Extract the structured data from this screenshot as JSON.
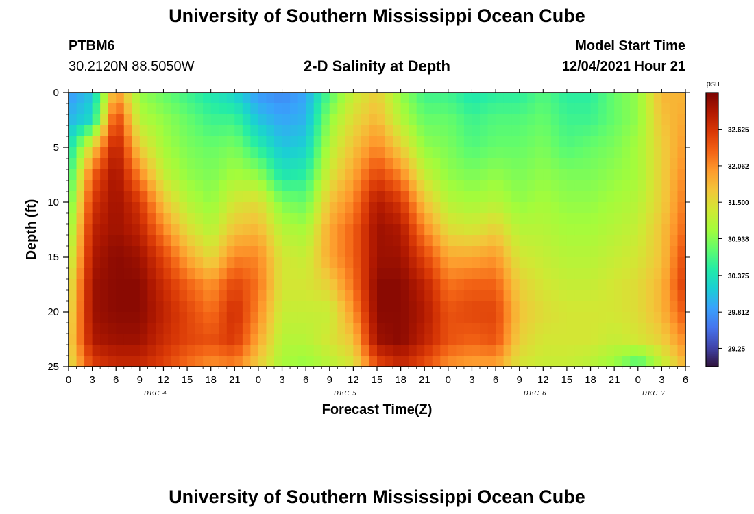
{
  "header": {
    "title": "University of Southern Mississippi Ocean Cube",
    "station_id": "PTBM6",
    "station_coords": "30.2120N  88.5050W",
    "chart_subtitle": "2-D Salinity at Depth",
    "model_start_label": "Model Start Time",
    "model_start_value": "12/04/2021 Hour 21"
  },
  "footer": {
    "title": "University of Southern Mississippi Ocean Cube"
  },
  "chart_data": {
    "type": "heatmap",
    "title": "2-D Salinity at Depth",
    "xlabel": "Forecast Time(Z)",
    "ylabel": "Depth (ft)",
    "x_hours_range": [
      0,
      78
    ],
    "ylim": [
      0,
      25
    ],
    "x_tick_labels": [
      "0",
      "3",
      "6",
      "9",
      "12",
      "15",
      "18",
      "21",
      "0",
      "3",
      "6",
      "9",
      "12",
      "15",
      "18",
      "21",
      "0",
      "3",
      "6",
      "9",
      "12",
      "15",
      "18",
      "21",
      "0",
      "3",
      "6"
    ],
    "y_tick_labels": [
      "0",
      "5",
      "10",
      "15",
      "20",
      "25"
    ],
    "day_labels": [
      {
        "label": "DEC 4",
        "hour": 11
      },
      {
        "label": "DEC 5",
        "hour": 35
      },
      {
        "label": "DEC 6",
        "hour": 59
      },
      {
        "label": "DEC 7",
        "hour": 74
      }
    ],
    "colorbar": {
      "unit": "psu",
      "vmin": 28.97,
      "vmax": 33.19,
      "tick_values": [
        32.625,
        32.062,
        31.5,
        30.938,
        30.375,
        29.812,
        29.25
      ],
      "tick_labels": [
        "32.625",
        "32.062",
        "31.500",
        "30.938",
        "30.375",
        "29.812",
        "29.25"
      ],
      "colormap": [
        "#30123b",
        "#4145ab",
        "#4675ed",
        "#39a2fc",
        "#1bcfd4",
        "#24eca6",
        "#61fc6c",
        "#a4fc3b",
        "#d1e834",
        "#f3c63a",
        "#fe9b2d",
        "#f36315",
        "#d93806",
        "#b11901",
        "#7a0402"
      ]
    },
    "approx_grid": {
      "x_hours": [
        0,
        3,
        6,
        9,
        12,
        15,
        18,
        21,
        24,
        27,
        30,
        33,
        36,
        39,
        42,
        45,
        48,
        51,
        54,
        57,
        60,
        63,
        66,
        69,
        72,
        75,
        78
      ],
      "depths_ft": [
        0,
        2.5,
        5,
        7.5,
        10,
        12.5,
        15,
        17.5,
        20,
        22.5,
        25
      ],
      "values_psu": [
        [
          29.8,
          30.0,
          30.3,
          30.5,
          30.7,
          30.9,
          31.1,
          31.3,
          31.4,
          31.5,
          31.4
        ],
        [
          30.1,
          30.3,
          31.6,
          32.3,
          32.6,
          32.8,
          32.9,
          33.0,
          33.0,
          32.9,
          32.5
        ],
        [
          32.0,
          32.6,
          32.9,
          33.0,
          33.0,
          33.0,
          33.1,
          33.1,
          33.1,
          33.0,
          32.7
        ],
        [
          31.0,
          31.2,
          31.6,
          32.1,
          32.6,
          32.8,
          33.0,
          33.1,
          33.1,
          33.0,
          32.7
        ],
        [
          30.8,
          31.0,
          31.1,
          31.3,
          31.7,
          32.1,
          32.5,
          32.7,
          32.8,
          32.7,
          32.5
        ],
        [
          30.6,
          30.8,
          30.9,
          31.0,
          31.2,
          31.5,
          31.9,
          32.3,
          32.5,
          32.5,
          32.2
        ],
        [
          30.4,
          30.6,
          30.8,
          30.9,
          31.0,
          31.2,
          31.5,
          32.0,
          32.2,
          32.4,
          32.0
        ],
        [
          30.2,
          30.6,
          30.9,
          31.1,
          31.4,
          31.7,
          32.1,
          32.5,
          32.7,
          32.6,
          32.1
        ],
        [
          29.8,
          30.1,
          30.5,
          31.0,
          31.5,
          31.8,
          32.1,
          32.2,
          32.1,
          31.9,
          31.6
        ],
        [
          29.7,
          29.9,
          30.1,
          30.4,
          30.9,
          31.2,
          31.4,
          31.4,
          31.3,
          31.2,
          31.1
        ],
        [
          29.9,
          30.0,
          30.2,
          30.5,
          30.8,
          31.1,
          31.3,
          31.4,
          31.3,
          31.2,
          31.0
        ],
        [
          30.7,
          31.0,
          31.2,
          31.4,
          31.7,
          31.9,
          31.9,
          31.6,
          31.3,
          31.4,
          31.2
        ],
        [
          31.3,
          31.5,
          31.7,
          31.9,
          32.1,
          32.3,
          32.3,
          32.2,
          32.0,
          31.7,
          31.4
        ],
        [
          31.6,
          31.8,
          32.1,
          32.5,
          32.9,
          33.0,
          33.0,
          33.1,
          33.1,
          33.0,
          32.4
        ],
        [
          31.0,
          31.2,
          31.6,
          32.1,
          32.6,
          32.9,
          33.0,
          33.1,
          33.1,
          33.1,
          32.7
        ],
        [
          30.6,
          30.8,
          31.0,
          31.3,
          31.7,
          32.1,
          32.5,
          32.8,
          32.9,
          32.8,
          32.4
        ],
        [
          30.6,
          30.8,
          30.9,
          31.0,
          31.2,
          31.5,
          31.9,
          32.2,
          32.4,
          32.4,
          32.0
        ],
        [
          30.4,
          30.6,
          30.7,
          30.9,
          31.1,
          31.4,
          31.9,
          32.3,
          32.5,
          32.3,
          31.9
        ],
        [
          30.5,
          30.7,
          30.8,
          31.0,
          31.2,
          31.6,
          32.0,
          32.3,
          32.5,
          32.4,
          31.9
        ],
        [
          30.5,
          30.7,
          30.8,
          30.9,
          31.0,
          31.2,
          31.4,
          31.6,
          31.7,
          31.6,
          31.4
        ],
        [
          30.7,
          30.8,
          30.9,
          31.0,
          31.1,
          31.2,
          31.3,
          31.4,
          31.5,
          31.4,
          31.3
        ],
        [
          30.5,
          30.6,
          30.7,
          30.9,
          31.0,
          31.1,
          31.2,
          31.3,
          31.4,
          31.4,
          31.3
        ],
        [
          30.5,
          30.6,
          30.8,
          30.9,
          31.0,
          31.1,
          31.2,
          31.3,
          31.4,
          31.4,
          31.2
        ],
        [
          30.8,
          30.8,
          30.9,
          31.0,
          31.1,
          31.2,
          31.3,
          31.4,
          31.4,
          31.3,
          31.0
        ],
        [
          31.0,
          31.0,
          31.1,
          31.1,
          31.2,
          31.3,
          31.4,
          31.5,
          31.5,
          31.4,
          30.6
        ],
        [
          31.8,
          31.7,
          31.6,
          31.6,
          31.6,
          31.7,
          31.7,
          31.8,
          31.8,
          31.6,
          31.2
        ],
        [
          31.8,
          31.9,
          32.0,
          32.1,
          32.2,
          32.3,
          32.5,
          32.6,
          32.4,
          32.1,
          31.8
        ]
      ]
    }
  }
}
